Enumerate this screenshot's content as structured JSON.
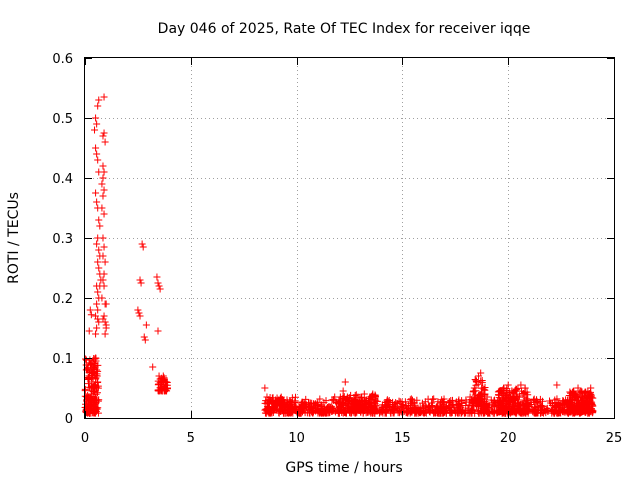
{
  "chart_data": {
    "type": "scatter",
    "title": "Day 046 of 2025, Rate Of TEC Index for receiver iqqe",
    "xlabel": "GPS time / hours",
    "ylabel": "ROTI / TECUs",
    "xlim": [
      0,
      25
    ],
    "ylim": [
      0,
      0.6
    ],
    "xticks": [
      0,
      5,
      10,
      15,
      20,
      25
    ],
    "xtick_labels": [
      "0",
      "5",
      "10",
      "15",
      "20",
      "25"
    ],
    "yticks": [
      0,
      0.1,
      0.2,
      0.3,
      0.4,
      0.5,
      0.6
    ],
    "ytick_labels": [
      "0",
      "0.1",
      "0.2",
      "0.3",
      "0.4",
      "0.5",
      "0.6"
    ],
    "grid": true,
    "marker": "+",
    "color": "#ff0000",
    "series": [
      {
        "name": "ROTI",
        "points": [
          [
            0.05,
            0.012
          ],
          [
            0.08,
            0.015
          ],
          [
            0.1,
            0.018
          ],
          [
            0.12,
            0.014
          ],
          [
            0.15,
            0.02
          ],
          [
            0.18,
            0.025
          ],
          [
            0.2,
            0.03
          ],
          [
            0.22,
            0.016
          ],
          [
            0.25,
            0.035
          ],
          [
            0.28,
            0.05
          ],
          [
            0.3,
            0.04
          ],
          [
            0.32,
            0.06
          ],
          [
            0.35,
            0.07
          ],
          [
            0.38,
            0.065
          ],
          [
            0.4,
            0.08
          ],
          [
            0.42,
            0.075
          ],
          [
            0.45,
            0.09
          ],
          [
            0.48,
            0.085
          ],
          [
            0.5,
            0.1
          ],
          [
            0.52,
            0.095
          ],
          [
            0.55,
            0.08
          ],
          [
            0.58,
            0.07
          ],
          [
            0.6,
            0.06
          ],
          [
            0.25,
            0.02
          ],
          [
            0.3,
            0.025
          ],
          [
            0.35,
            0.03
          ],
          [
            0.4,
            0.045
          ],
          [
            0.45,
            0.055
          ],
          [
            0.5,
            0.065
          ],
          [
            0.55,
            0.05
          ],
          [
            0.2,
            0.145
          ],
          [
            0.25,
            0.18
          ],
          [
            0.3,
            0.172
          ],
          [
            0.45,
            0.48
          ],
          [
            0.5,
            0.5
          ],
          [
            0.55,
            0.49
          ],
          [
            0.6,
            0.52
          ],
          [
            0.65,
            0.53
          ],
          [
            0.5,
            0.45
          ],
          [
            0.55,
            0.44
          ],
          [
            0.6,
            0.43
          ],
          [
            0.65,
            0.41
          ],
          [
            0.5,
            0.375
          ],
          [
            0.55,
            0.36
          ],
          [
            0.6,
            0.35
          ],
          [
            0.65,
            0.33
          ],
          [
            0.7,
            0.32
          ],
          [
            0.6,
            0.3
          ],
          [
            0.55,
            0.29
          ],
          [
            0.65,
            0.28
          ],
          [
            0.7,
            0.27
          ],
          [
            0.6,
            0.26
          ],
          [
            0.65,
            0.25
          ],
          [
            0.7,
            0.24
          ],
          [
            0.75,
            0.23
          ],
          [
            0.55,
            0.22
          ],
          [
            0.6,
            0.21
          ],
          [
            0.65,
            0.2
          ],
          [
            0.55,
            0.19
          ],
          [
            0.6,
            0.18
          ],
          [
            0.5,
            0.17
          ],
          [
            0.6,
            0.165
          ],
          [
            0.65,
            0.16
          ],
          [
            0.55,
            0.15
          ],
          [
            0.5,
            0.14
          ],
          [
            0.7,
            0.22
          ],
          [
            0.9,
            0.535
          ],
          [
            0.85,
            0.47
          ],
          [
            0.9,
            0.475
          ],
          [
            0.95,
            0.46
          ],
          [
            0.85,
            0.42
          ],
          [
            0.9,
            0.41
          ],
          [
            0.85,
            0.4
          ],
          [
            0.8,
            0.39
          ],
          [
            0.9,
            0.38
          ],
          [
            0.85,
            0.37
          ],
          [
            0.8,
            0.35
          ],
          [
            0.9,
            0.34
          ],
          [
            0.85,
            0.3
          ],
          [
            0.9,
            0.285
          ],
          [
            0.85,
            0.27
          ],
          [
            0.95,
            0.26
          ],
          [
            0.9,
            0.24
          ],
          [
            0.85,
            0.23
          ],
          [
            0.9,
            0.22
          ],
          [
            0.8,
            0.2
          ],
          [
            0.95,
            0.19
          ],
          [
            1.0,
            0.19
          ],
          [
            0.9,
            0.17
          ],
          [
            0.95,
            0.16
          ],
          [
            1.0,
            0.155
          ],
          [
            0.95,
            0.14
          ],
          [
            1.0,
            0.15
          ],
          [
            0.85,
            0.165
          ],
          [
            2.5,
            0.18
          ],
          [
            2.55,
            0.175
          ],
          [
            2.6,
            0.23
          ],
          [
            2.65,
            0.225
          ],
          [
            2.7,
            0.29
          ],
          [
            2.75,
            0.285
          ],
          [
            2.6,
            0.17
          ],
          [
            2.8,
            0.135
          ],
          [
            2.85,
            0.13
          ],
          [
            2.9,
            0.155
          ],
          [
            3.2,
            0.085
          ],
          [
            3.4,
            0.235
          ],
          [
            3.45,
            0.225
          ],
          [
            3.5,
            0.22
          ],
          [
            3.55,
            0.215
          ],
          [
            3.45,
            0.145
          ],
          [
            3.5,
            0.07
          ],
          [
            3.55,
            0.065
          ],
          [
            3.6,
            0.06
          ],
          [
            3.65,
            0.055
          ],
          [
            3.7,
            0.06
          ],
          [
            3.75,
            0.05
          ],
          [
            3.8,
            0.055
          ],
          [
            3.85,
            0.06
          ],
          [
            3.9,
            0.05
          ],
          [
            3.6,
            0.05
          ],
          [
            3.65,
            0.045
          ],
          [
            3.7,
            0.07
          ],
          [
            3.75,
            0.065
          ],
          [
            8.5,
            0.05
          ],
          [
            8.6,
            0.035
          ],
          [
            8.7,
            0.03
          ],
          [
            8.8,
            0.028
          ],
          [
            8.9,
            0.025
          ],
          [
            9.0,
            0.03
          ],
          [
            9.1,
            0.022
          ],
          [
            9.2,
            0.025
          ],
          [
            9.3,
            0.02
          ],
          [
            9.4,
            0.018
          ],
          [
            9.5,
            0.022
          ],
          [
            9.6,
            0.015
          ],
          [
            9.7,
            0.018
          ],
          [
            9.8,
            0.016
          ],
          [
            9.9,
            0.014
          ],
          [
            10.0,
            0.012
          ],
          [
            10.2,
            0.015
          ],
          [
            10.4,
            0.012
          ],
          [
            10.6,
            0.014
          ],
          [
            10.8,
            0.01
          ],
          [
            11.0,
            0.012
          ],
          [
            11.2,
            0.015
          ],
          [
            11.4,
            0.012
          ],
          [
            11.6,
            0.018
          ],
          [
            11.8,
            0.035
          ],
          [
            11.9,
            0.025
          ],
          [
            12.0,
            0.03
          ],
          [
            12.1,
            0.02
          ],
          [
            12.2,
            0.045
          ],
          [
            12.3,
            0.06
          ],
          [
            12.4,
            0.035
          ],
          [
            12.5,
            0.03
          ],
          [
            12.6,
            0.028
          ],
          [
            12.7,
            0.025
          ],
          [
            12.8,
            0.03
          ],
          [
            12.9,
            0.035
          ],
          [
            13.0,
            0.02
          ],
          [
            13.1,
            0.025
          ],
          [
            13.2,
            0.04
          ],
          [
            13.3,
            0.03
          ],
          [
            13.4,
            0.025
          ],
          [
            13.5,
            0.035
          ],
          [
            13.6,
            0.04
          ],
          [
            13.7,
            0.02
          ],
          [
            13.8,
            0.015
          ],
          [
            14.0,
            0.015
          ],
          [
            14.2,
            0.02
          ],
          [
            14.4,
            0.018
          ],
          [
            14.6,
            0.015
          ],
          [
            14.8,
            0.012
          ],
          [
            15.0,
            0.015
          ],
          [
            15.2,
            0.012
          ],
          [
            15.4,
            0.01
          ],
          [
            15.6,
            0.015
          ],
          [
            15.8,
            0.012
          ],
          [
            16.0,
            0.018
          ],
          [
            16.2,
            0.015
          ],
          [
            16.4,
            0.02
          ],
          [
            16.6,
            0.018
          ],
          [
            16.8,
            0.025
          ],
          [
            17.0,
            0.02
          ],
          [
            17.2,
            0.025
          ],
          [
            17.4,
            0.022
          ],
          [
            17.6,
            0.02
          ],
          [
            17.8,
            0.025
          ],
          [
            18.0,
            0.03
          ],
          [
            18.2,
            0.035
          ],
          [
            18.4,
            0.05
          ],
          [
            18.5,
            0.06
          ],
          [
            18.6,
            0.07
          ],
          [
            18.7,
            0.075
          ],
          [
            18.8,
            0.05
          ],
          [
            18.9,
            0.04
          ],
          [
            19.0,
            0.035
          ],
          [
            19.2,
            0.03
          ],
          [
            19.4,
            0.025
          ],
          [
            19.6,
            0.045
          ],
          [
            19.8,
            0.05
          ],
          [
            19.9,
            0.04
          ],
          [
            20.0,
            0.055
          ],
          [
            20.1,
            0.03
          ],
          [
            20.2,
            0.025
          ],
          [
            20.4,
            0.045
          ],
          [
            20.6,
            0.055
          ],
          [
            20.7,
            0.04
          ],
          [
            20.8,
            0.05
          ],
          [
            21.0,
            0.02
          ],
          [
            21.2,
            0.03
          ],
          [
            21.4,
            0.025
          ],
          [
            21.6,
            0.02
          ],
          [
            21.8,
            0.015
          ],
          [
            22.0,
            0.025
          ],
          [
            22.2,
            0.03
          ],
          [
            22.3,
            0.055
          ],
          [
            22.4,
            0.025
          ],
          [
            22.6,
            0.02
          ],
          [
            22.8,
            0.03
          ],
          [
            23.0,
            0.035
          ],
          [
            23.1,
            0.045
          ],
          [
            23.2,
            0.04
          ],
          [
            23.3,
            0.05
          ],
          [
            23.4,
            0.035
          ],
          [
            23.5,
            0.03
          ],
          [
            23.6,
            0.025
          ],
          [
            23.7,
            0.02
          ],
          [
            23.8,
            0.04
          ],
          [
            23.9,
            0.05
          ],
          [
            24.0,
            0.02
          ],
          [
            24.0,
            0.012
          ]
        ],
        "dense_clusters": [
          {
            "x_min": 0.0,
            "x_max": 0.65,
            "y_min": 0.008,
            "y_max": 0.1,
            "count": 160
          },
          {
            "x_min": 3.45,
            "x_max": 3.9,
            "y_min": 0.045,
            "y_max": 0.068,
            "count": 45
          },
          {
            "x_min": 8.5,
            "x_max": 24.0,
            "y_min": 0.008,
            "y_max": 0.032,
            "count": 950
          },
          {
            "x_min": 8.5,
            "x_max": 10.0,
            "y_min": 0.012,
            "y_max": 0.035,
            "count": 80
          },
          {
            "x_min": 12.0,
            "x_max": 13.8,
            "y_min": 0.012,
            "y_max": 0.04,
            "count": 140
          },
          {
            "x_min": 18.3,
            "x_max": 19.0,
            "y_min": 0.02,
            "y_max": 0.065,
            "count": 60
          },
          {
            "x_min": 19.5,
            "x_max": 21.0,
            "y_min": 0.01,
            "y_max": 0.05,
            "count": 160
          },
          {
            "x_min": 22.8,
            "x_max": 24.0,
            "y_min": 0.01,
            "y_max": 0.045,
            "count": 160
          }
        ]
      }
    ]
  }
}
